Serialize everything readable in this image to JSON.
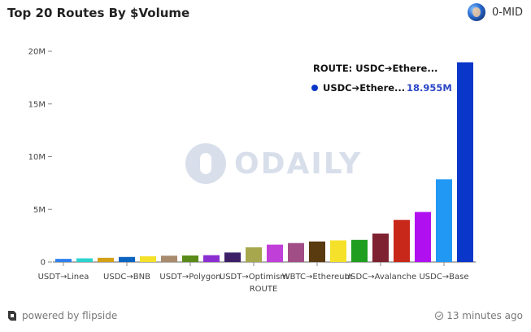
{
  "header": {
    "title": "Top 20 Routes By $Volume",
    "author": "0-MID"
  },
  "watermark": {
    "text": "ODAILY"
  },
  "tooltip": {
    "heading": "ROUTE: USDC➔Ethere...",
    "series_label": "USDC➔Ethere...",
    "value": "18.955M",
    "dot_color": "#0a37c9"
  },
  "footer": {
    "powered_by": "powered by flipside",
    "updated": "13 minutes ago"
  },
  "chart_data": {
    "type": "bar",
    "xlabel": "ROUTE",
    "ylabel": "",
    "ylim": [
      0,
      20000000
    ],
    "ytick_values": [
      0,
      5000000,
      10000000,
      15000000,
      20000000
    ],
    "ytick_labels": [
      "0",
      "5M",
      "10M",
      "15M",
      "20M"
    ],
    "grid": false,
    "categories": [
      "USDT→Linea",
      "",
      "",
      "USDC→BNB",
      "",
      "",
      "USDT→Polygon",
      "",
      "",
      "USDT→Optimism",
      "",
      "",
      "WBTC→Ethereum",
      "",
      "",
      "USDC→Avalanche",
      "",
      "",
      "USDC→Base",
      ""
    ],
    "visible_tick_labels": [
      {
        "index": 0,
        "label": "USDT→Linea"
      },
      {
        "index": 3,
        "label": "USDC→BNB"
      },
      {
        "index": 6,
        "label": "USDT→Polygon"
      },
      {
        "index": 9,
        "label": "USDT→Optimism"
      },
      {
        "index": 12,
        "label": "WBTC→Ethereum"
      },
      {
        "index": 15,
        "label": "USDC→Avalanche"
      },
      {
        "index": 18,
        "label": "USDC→Base"
      }
    ],
    "values": [
      300000,
      350000,
      400000,
      480000,
      550000,
      600000,
      620000,
      650000,
      900000,
      1400000,
      1650000,
      1800000,
      1950000,
      2050000,
      2100000,
      2700000,
      4000000,
      4750000,
      7850000,
      18955000
    ],
    "colors": [
      "#2f80ed",
      "#2ed3cf",
      "#d4a017",
      "#0b64c0",
      "#f5e12a",
      "#a88a6d",
      "#5a8a1a",
      "#8b2fd1",
      "#3c1f66",
      "#a7a84e",
      "#c03fd9",
      "#a24e86",
      "#5a3a0f",
      "#f5e12a",
      "#1f9e1f",
      "#7e2130",
      "#c8281a",
      "#b010f0",
      "#2298f5",
      "#0a37c9"
    ]
  }
}
